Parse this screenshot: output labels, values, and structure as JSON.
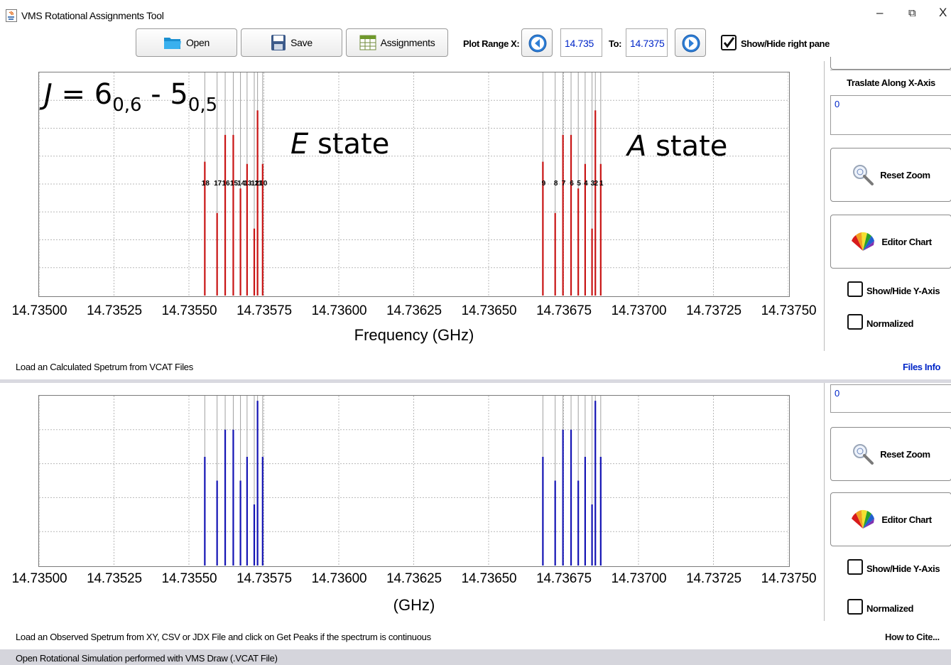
{
  "window": {
    "title": "VMS Rotational Assignments Tool",
    "controls": [
      "–",
      "⧉",
      "X"
    ]
  },
  "toolbar": {
    "open_label": "Open",
    "save_label": "Save",
    "assignments_label": "Assignments",
    "plot_range_label": "Plot Range X:",
    "range_from": "14.735",
    "to_label": "To:",
    "range_to": "14.7375",
    "show_hide_label": "Show/Hide right pane",
    "show_hide_checked": true
  },
  "annotations": {
    "transition_J": "J",
    "transition_eq": " = 6",
    "transition_sub1": "0,6",
    "transition_mid": " - 5",
    "transition_sub2": "0,5",
    "e_state_letter": "E",
    "e_state_word": " state",
    "a_state_letter": "A",
    "a_state_word": " state"
  },
  "top_panel": {
    "status": "Load an Calculated Spetrum from VCAT Files",
    "files_info": "Files Info"
  },
  "bottom_panel": {
    "status": "Load an Observed Spetrum from XY, CSV or JDX File and click on Get Peaks if the spectrum is continuous",
    "how_to_cite": "How to Cite..."
  },
  "right_pane_top": {
    "translate_label": "Traslate Along X-Axis",
    "translate_value": "0",
    "reset_zoom": "Reset Zoom",
    "editor_chart": "Editor Chart",
    "show_hide_y": "Show/Hide Y-Axis",
    "normalized": "Normalized"
  },
  "right_pane_bottom": {
    "translate_value": "0",
    "reset_zoom": "Reset Zoom",
    "editor_chart": "Editor Chart",
    "show_hide_y": "Show/Hide Y-Axis",
    "normalized": "Normalized"
  },
  "footer": {
    "text": "Open Rotational Simulation performed with VMS Draw (.VCAT File)"
  },
  "chart_data": [
    {
      "type": "bar",
      "title": "",
      "xlabel": "Frequency (GHz)",
      "ylabel": "",
      "xlim": [
        14.735,
        14.7375
      ],
      "ylim": [
        0,
        1
      ],
      "x_ticks": [
        "14.73500",
        "14.73525",
        "14.73550",
        "14.73575",
        "14.73600",
        "14.73625",
        "14.73650",
        "14.73675",
        "14.73700",
        "14.73725",
        "14.73750"
      ],
      "color": "#c81414",
      "grid": true,
      "peaks": [
        {
          "x": 14.735553,
          "y": 0.6,
          "label": "18"
        },
        {
          "x": 14.735594,
          "y": 0.37,
          "label": "17"
        },
        {
          "x": 14.735621,
          "y": 0.72,
          "label": "16"
        },
        {
          "x": 14.735648,
          "y": 0.72,
          "label": "15"
        },
        {
          "x": 14.735672,
          "y": 0.48,
          "label": "14"
        },
        {
          "x": 14.735694,
          "y": 0.59,
          "label": "13"
        },
        {
          "x": 14.735718,
          "y": 0.3,
          "label": "12"
        },
        {
          "x": 14.735729,
          "y": 0.83,
          "label": "11"
        },
        {
          "x": 14.735746,
          "y": 0.59,
          "label": "10"
        },
        {
          "x": 14.736681,
          "y": 0.6,
          "label": "9"
        },
        {
          "x": 14.736722,
          "y": 0.37,
          "label": "8"
        },
        {
          "x": 14.736748,
          "y": 0.72,
          "label": "7"
        },
        {
          "x": 14.736775,
          "y": 0.72,
          "label": "6"
        },
        {
          "x": 14.736799,
          "y": 0.48,
          "label": "5"
        },
        {
          "x": 14.736822,
          "y": 0.59,
          "label": "4"
        },
        {
          "x": 14.736845,
          "y": 0.3,
          "label": "3"
        },
        {
          "x": 14.736856,
          "y": 0.83,
          "label": "2"
        },
        {
          "x": 14.736874,
          "y": 0.59,
          "label": "1"
        }
      ]
    },
    {
      "type": "bar",
      "title": "",
      "xlabel": "(GHz)",
      "ylabel": "",
      "xlim": [
        14.735,
        14.7375
      ],
      "ylim": [
        0,
        1
      ],
      "x_ticks": [
        "14.73500",
        "14.73525",
        "14.73550",
        "14.73575",
        "14.73600",
        "14.73625",
        "14.73650",
        "14.73675",
        "14.73700",
        "14.73725",
        "14.73750"
      ],
      "color": "#1414b4",
      "grid": true,
      "peaks": [
        {
          "x": 14.735553,
          "y": 0.64
        },
        {
          "x": 14.735594,
          "y": 0.5
        },
        {
          "x": 14.735621,
          "y": 0.8
        },
        {
          "x": 14.735648,
          "y": 0.8
        },
        {
          "x": 14.735672,
          "y": 0.5
        },
        {
          "x": 14.735694,
          "y": 0.64
        },
        {
          "x": 14.735718,
          "y": 0.36
        },
        {
          "x": 14.735729,
          "y": 0.97
        },
        {
          "x": 14.735746,
          "y": 0.64
        },
        {
          "x": 14.736681,
          "y": 0.64
        },
        {
          "x": 14.736722,
          "y": 0.5
        },
        {
          "x": 14.736748,
          "y": 0.8
        },
        {
          "x": 14.736775,
          "y": 0.8
        },
        {
          "x": 14.736799,
          "y": 0.5
        },
        {
          "x": 14.736822,
          "y": 0.64
        },
        {
          "x": 14.736845,
          "y": 0.36
        },
        {
          "x": 14.736856,
          "y": 0.97
        },
        {
          "x": 14.736874,
          "y": 0.64
        }
      ]
    }
  ]
}
